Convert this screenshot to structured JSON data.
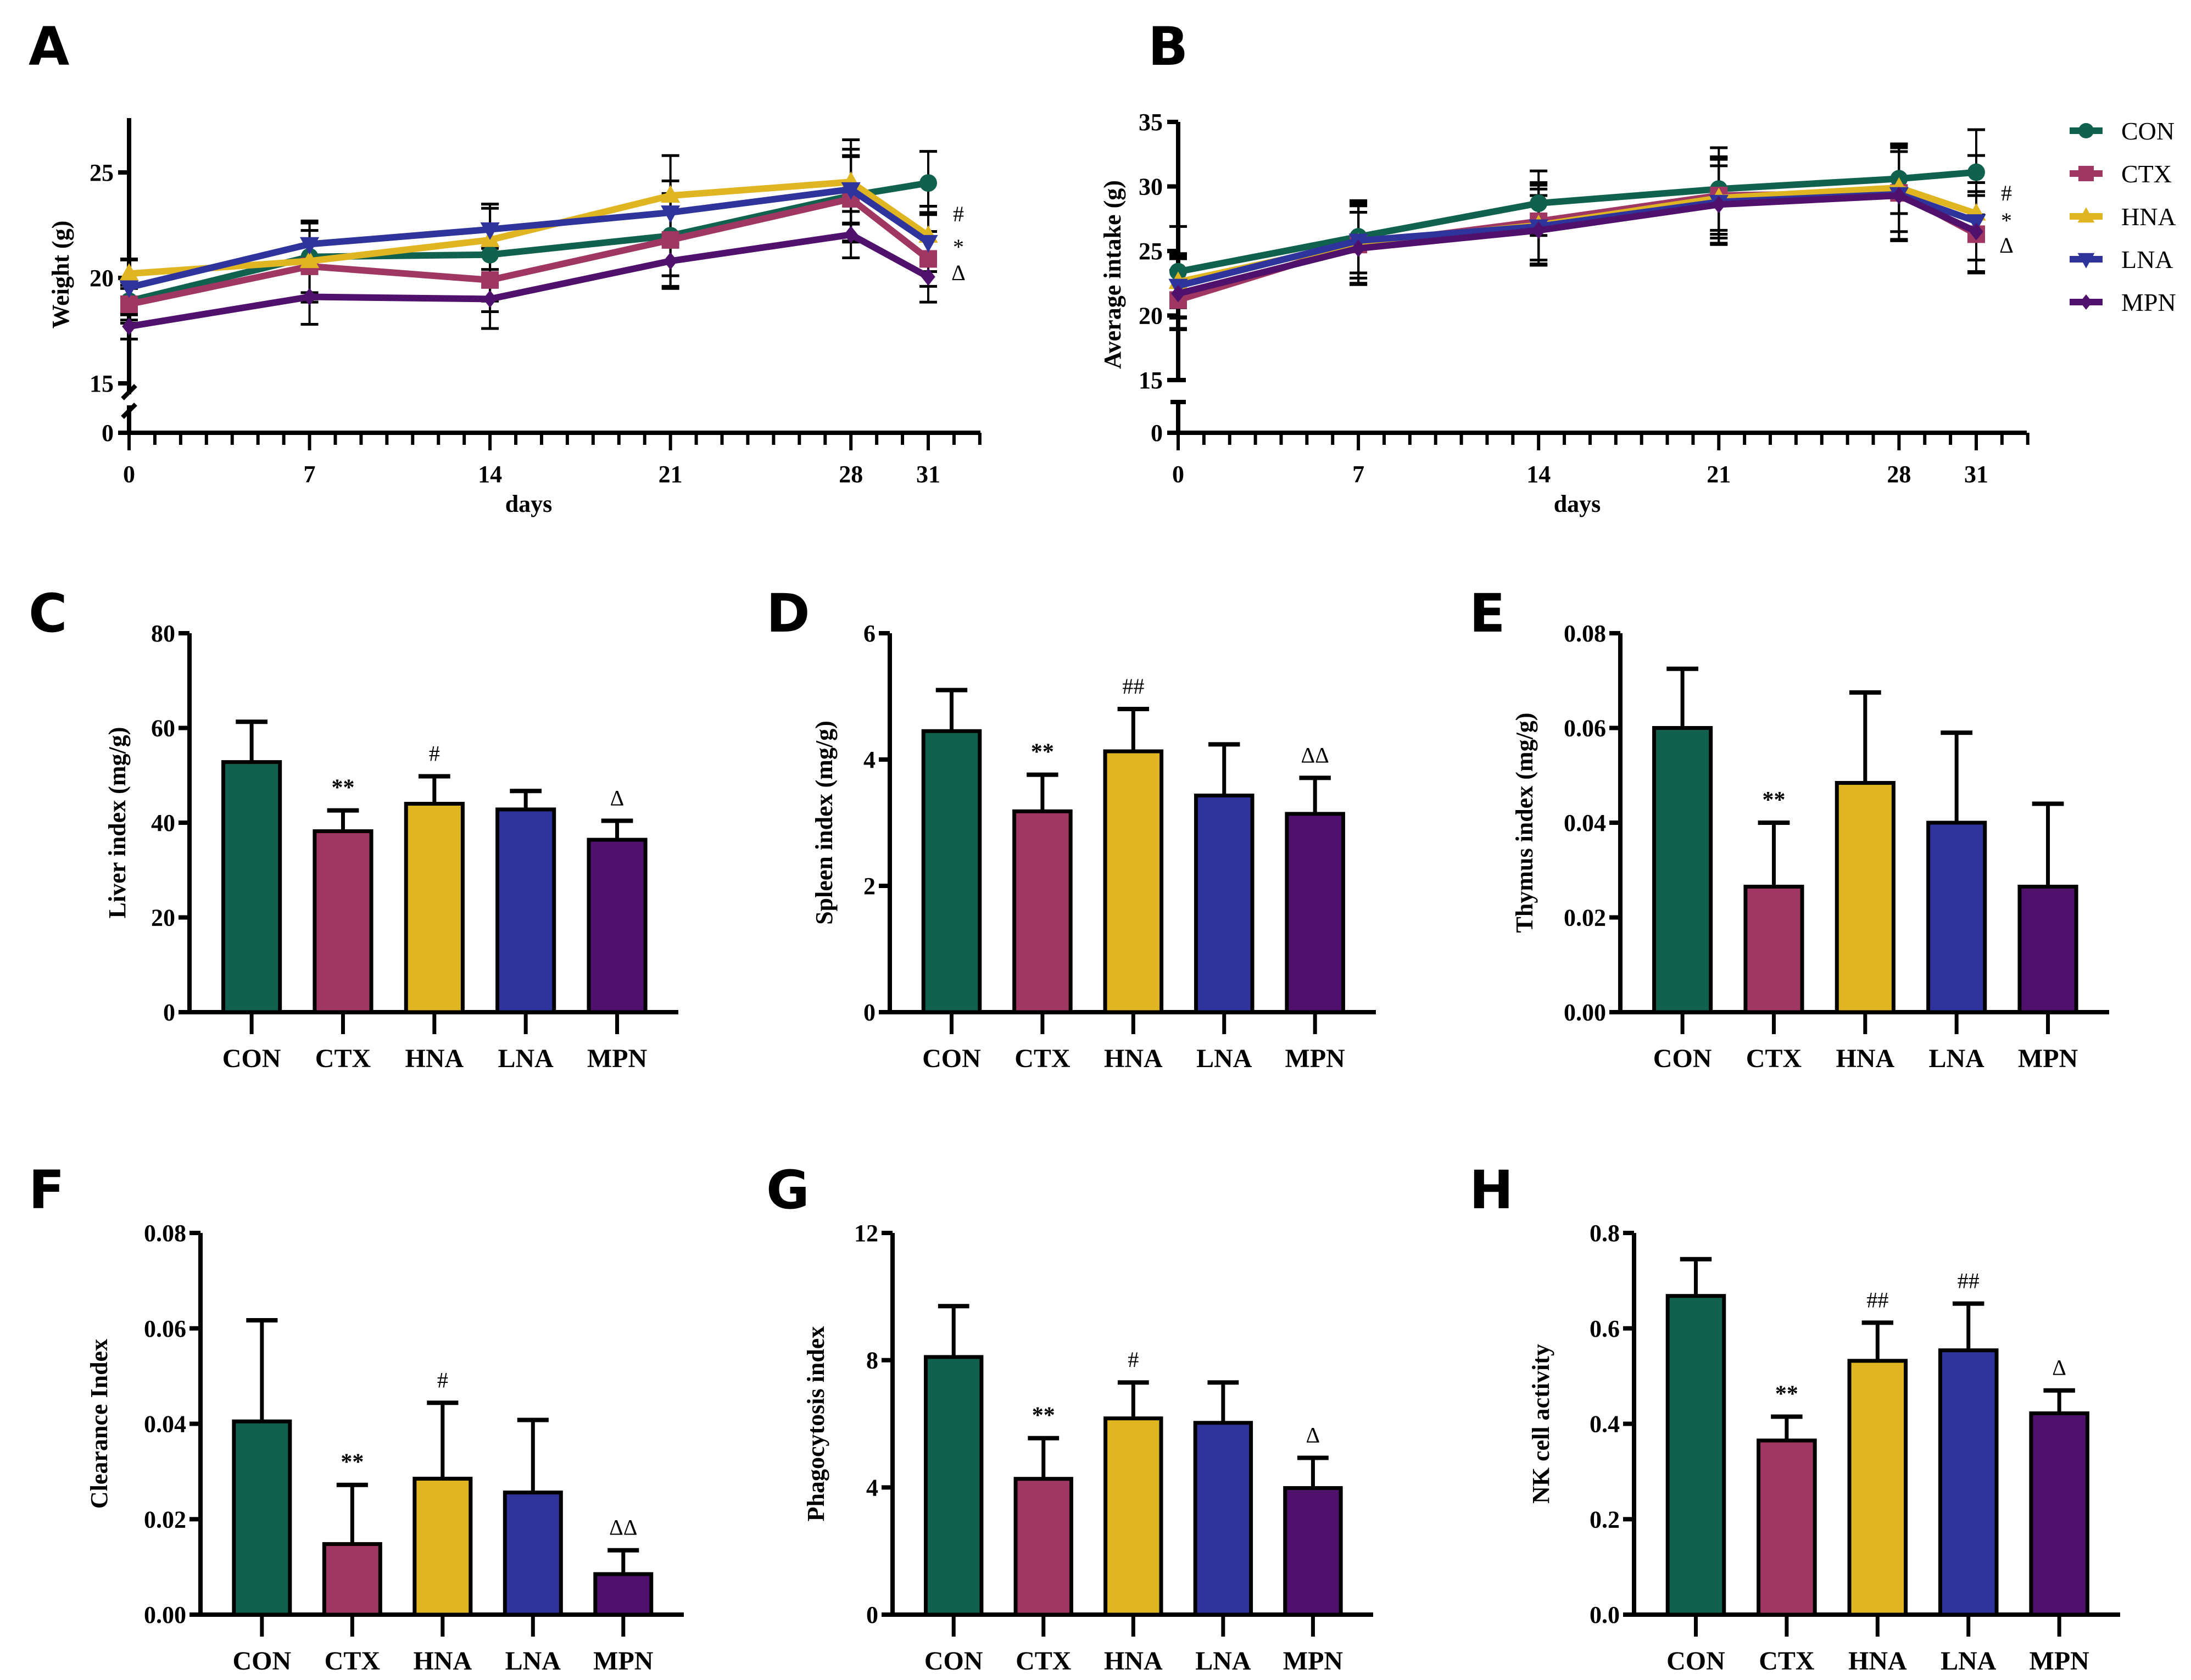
{
  "groups": [
    "CON",
    "CTX",
    "HNA",
    "LNA",
    "MPN"
  ],
  "colors": {
    "CON": "#11614f",
    "CTX": "#a03762",
    "HNA": "#dfb521",
    "LNA": "#2e349c",
    "MPN": "#4f116b"
  },
  "chart_data": [
    {
      "panel": "A",
      "type": "line",
      "title": "",
      "xlabel": "days",
      "ylabel": "Weight (g)",
      "x": [
        0,
        7,
        14,
        21,
        28,
        31
      ],
      "xticks": [
        "0",
        "7",
        "14",
        "21",
        "28",
        "31"
      ],
      "yticks": [
        "0",
        "15",
        "20",
        "25"
      ],
      "ylim": [
        15,
        27
      ],
      "ybreak": [
        0,
        15
      ],
      "series": [
        {
          "name": "CON",
          "marker": "circle",
          "values": [
            18.9,
            21.0,
            21.1,
            22.0,
            23.9,
            24.5
          ],
          "err": [
            0.9,
            1.7,
            2.2,
            1.9,
            2.2,
            1.5
          ]
        },
        {
          "name": "CTX",
          "marker": "square",
          "values": [
            18.75,
            20.55,
            19.9,
            21.8,
            23.75,
            20.9
          ],
          "err": [
            0.9,
            1.7,
            1.5,
            2.2,
            2.0,
            1.3
          ]
        },
        {
          "name": "HNA",
          "marker": "triangle-up",
          "values": [
            20.2,
            20.8,
            21.8,
            23.9,
            24.55,
            22.0
          ],
          "err": [
            0.7,
            1.8,
            1.7,
            1.9,
            2.0,
            1.4
          ]
        },
        {
          "name": "LNA",
          "marker": "triangle-down",
          "values": [
            19.55,
            21.6,
            22.3,
            23.1,
            24.2,
            21.7
          ],
          "err": [
            1.3,
            1.1,
            1.2,
            1.5,
            1.6,
            1.4
          ]
        },
        {
          "name": "MPN",
          "marker": "diamond",
          "values": [
            17.7,
            19.1,
            19.0,
            20.8,
            22.05,
            20.05
          ],
          "err": [
            0.6,
            1.3,
            1.4,
            1.3,
            1.1,
            1.2
          ]
        }
      ],
      "annotations": [
        "#",
        "*",
        "Δ"
      ]
    },
    {
      "panel": "B",
      "type": "line",
      "title": "",
      "xlabel": "days",
      "ylabel": "Average intake (g)",
      "x": [
        0,
        7,
        14,
        21,
        28,
        31
      ],
      "xticks": [
        "0",
        "7",
        "14",
        "21",
        "28",
        "31"
      ],
      "yticks": [
        "0",
        "15",
        "20",
        "25",
        "30",
        "35"
      ],
      "ylim": [
        15,
        35
      ],
      "ybreak": [
        0,
        15
      ],
      "legend": "right",
      "series": [
        {
          "name": "CON",
          "marker": "circle",
          "values": [
            23.4,
            26.1,
            28.7,
            29.8,
            30.6,
            31.1
          ],
          "err": [
            3.5,
            2.8,
            2.5,
            3.2,
            2.7,
            3.3
          ]
        },
        {
          "name": "CTX",
          "marker": "square",
          "values": [
            21.2,
            25.5,
            27.3,
            29.3,
            29.5,
            26.3
          ],
          "err": [
            2.3,
            3.0,
            3.0,
            3.0,
            3.7,
            3.0
          ]
        },
        {
          "name": "HNA",
          "marker": "triangle-up",
          "values": [
            22.6,
            25.6,
            27.0,
            29.1,
            29.9,
            27.9
          ],
          "err": [
            2.0,
            3.2,
            3.1,
            3.1,
            3.4,
            4.5
          ]
        },
        {
          "name": "LNA",
          "marker": "triangle-down",
          "values": [
            22.3,
            25.8,
            26.9,
            28.8,
            29.4,
            27.3
          ],
          "err": [
            2.5,
            2.9,
            2.9,
            3.3,
            3.6,
            3.0
          ]
        },
        {
          "name": "MPN",
          "marker": "diamond",
          "values": [
            21.7,
            25.2,
            26.6,
            28.6,
            29.3,
            26.5
          ],
          "err": [
            2.7,
            2.8,
            2.7,
            3.0,
            3.4,
            3.1
          ]
        }
      ],
      "annotations": [
        "#",
        "*",
        "Δ"
      ]
    },
    {
      "panel": "C",
      "type": "bar",
      "ylabel": "Liver index (mg/g)",
      "categories": [
        "CON",
        "CTX",
        "HNA",
        "LNA",
        "MPN"
      ],
      "values": [
        52.8,
        38.2,
        44.0,
        42.8,
        36.4
      ],
      "err": [
        8.5,
        4.4,
        5.8,
        3.9,
        4.0
      ],
      "sig": [
        "",
        "**",
        "#",
        "",
        "Δ"
      ],
      "ylim": [
        0,
        80
      ],
      "yticks": [
        "0",
        "20",
        "40",
        "60",
        "80"
      ]
    },
    {
      "panel": "D",
      "type": "bar",
      "ylabel": "Spleen index (mg/g)",
      "categories": [
        "CON",
        "CTX",
        "HNA",
        "LNA",
        "MPN"
      ],
      "values": [
        4.45,
        3.18,
        4.13,
        3.43,
        3.14
      ],
      "err": [
        0.65,
        0.58,
        0.67,
        0.81,
        0.57
      ],
      "sig": [
        "",
        "**",
        "##",
        "",
        "ΔΔ"
      ],
      "ylim": [
        0,
        6
      ],
      "yticks": [
        "0",
        "2",
        "4",
        "6"
      ]
    },
    {
      "panel": "E",
      "type": "bar",
      "ylabel": "Thymus index (mg/g)",
      "categories": [
        "CON",
        "CTX",
        "HNA",
        "LNA",
        "MPN"
      ],
      "values": [
        0.06,
        0.0265,
        0.0484,
        0.04,
        0.0265
      ],
      "err": [
        0.0125,
        0.0135,
        0.0191,
        0.019,
        0.0175
      ],
      "sig": [
        "",
        "**",
        "",
        "",
        ""
      ],
      "ylim": [
        0,
        0.08
      ],
      "yticks": [
        "0.00",
        "0.02",
        "0.04",
        "0.06",
        "0.08"
      ]
    },
    {
      "panel": "F",
      "type": "bar",
      "ylabel": "Clearance Index",
      "categories": [
        "CON",
        "CTX",
        "HNA",
        "LNA",
        "MPN"
      ],
      "values": [
        0.0405,
        0.0148,
        0.0285,
        0.0256,
        0.0085
      ],
      "err": [
        0.0212,
        0.0124,
        0.0159,
        0.0152,
        0.005
      ],
      "sig": [
        "",
        "**",
        "#",
        "",
        "ΔΔ"
      ],
      "ylim": [
        0,
        0.08
      ],
      "yticks": [
        "0.00",
        "0.02",
        "0.04",
        "0.06",
        "0.08"
      ]
    },
    {
      "panel": "G",
      "type": "bar",
      "ylabel": "Phagocytosis index",
      "categories": [
        "CON",
        "CTX",
        "HNA",
        "LNA",
        "MPN"
      ],
      "values": [
        8.1,
        4.27,
        6.17,
        6.03,
        3.98
      ],
      "err": [
        1.6,
        1.28,
        1.13,
        1.27,
        0.95
      ],
      "sig": [
        "",
        "**",
        "#",
        "",
        "Δ"
      ],
      "ylim": [
        0,
        12
      ],
      "yticks": [
        "0",
        "4",
        "8",
        "12"
      ]
    },
    {
      "panel": "H",
      "type": "bar",
      "ylabel": "NK cell activity",
      "categories": [
        "CON",
        "CTX",
        "HNA",
        "LNA",
        "MPN"
      ],
      "values": [
        0.668,
        0.365,
        0.532,
        0.554,
        0.422
      ],
      "err": [
        0.077,
        0.05,
        0.08,
        0.098,
        0.048
      ],
      "sig": [
        "",
        "**",
        "##",
        "##",
        "Δ"
      ],
      "ylim": [
        0,
        0.8
      ],
      "yticks": [
        "0.0",
        "0.2",
        "0.4",
        "0.6",
        "0.8"
      ]
    }
  ]
}
